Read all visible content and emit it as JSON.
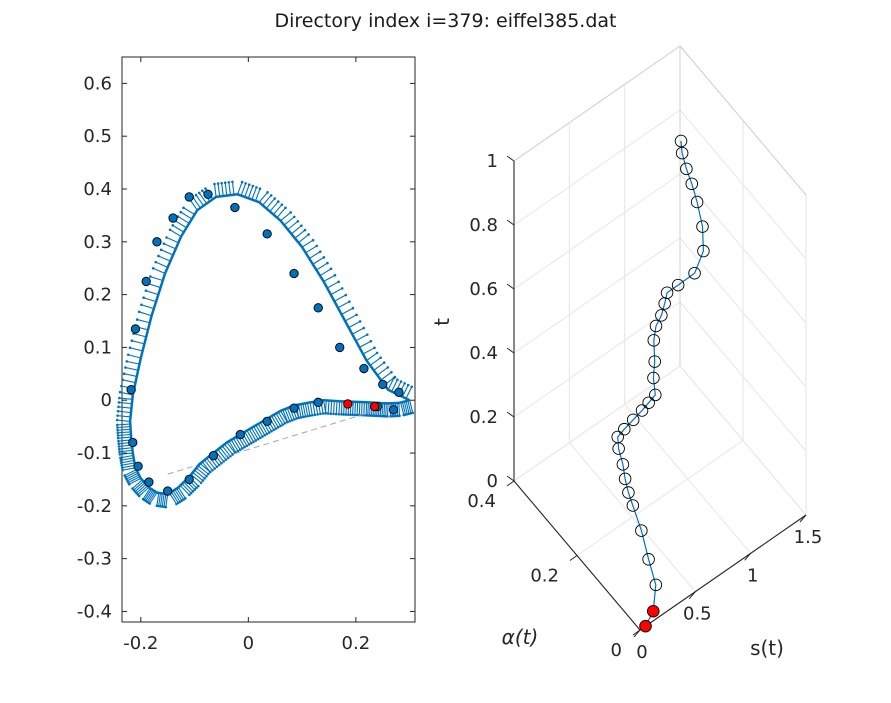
{
  "title": "Directory index i=379: eiffel385.dat",
  "colors": {
    "line": "#0072BD",
    "highlight": "#FF0000",
    "marker_edge": "#000000",
    "grid": "#E6E6E6",
    "axis": "#262626",
    "chord": "#A6A6A6"
  },
  "chart_data": [
    {
      "type": "line",
      "panel": "airfoil-2d",
      "title": "",
      "xlabel": "",
      "ylabel": "",
      "xlim": [
        -0.235,
        0.31
      ],
      "ylim": [
        -0.42,
        0.65
      ],
      "xticks": [
        -0.2,
        0,
        0.2
      ],
      "xtick_labels": [
        "-0.2",
        "0",
        "0.2"
      ],
      "yticks": [
        -0.4,
        -0.3,
        -0.2,
        -0.1,
        0,
        0.1,
        0.2,
        0.3,
        0.4,
        0.5,
        0.6
      ],
      "ytick_labels": [
        "-0.4",
        "-0.3",
        "-0.2",
        "-0.1",
        "0",
        "0.1",
        "0.2",
        "0.3",
        "0.4",
        "0.5",
        "0.6"
      ],
      "grid": false,
      "series": [
        {
          "role": "contour",
          "x": [
            0.3,
            0.28,
            0.26,
            0.24,
            0.22,
            0.195,
            0.17,
            0.14,
            0.11,
            0.085,
            0.06,
            0.035,
            0.01,
            -0.015,
            -0.04,
            -0.065,
            -0.09,
            -0.11,
            -0.13,
            -0.15,
            -0.17,
            -0.185,
            -0.2,
            -0.21,
            -0.215,
            -0.218,
            -0.22,
            -0.215,
            -0.2,
            -0.18,
            -0.155,
            -0.125,
            -0.095,
            -0.06,
            -0.02,
            0.02,
            0.06,
            0.1,
            0.14,
            0.18,
            0.22,
            0.26,
            0.3
          ],
          "y": [
            0.0,
            -0.005,
            -0.006,
            -0.005,
            -0.004,
            -0.003,
            -0.002,
            0.0,
            -0.005,
            -0.01,
            -0.02,
            -0.035,
            -0.05,
            -0.065,
            -0.08,
            -0.1,
            -0.12,
            -0.145,
            -0.165,
            -0.178,
            -0.175,
            -0.165,
            -0.148,
            -0.128,
            -0.1,
            -0.07,
            -0.04,
            0.01,
            0.08,
            0.16,
            0.24,
            0.31,
            0.36,
            0.385,
            0.39,
            0.375,
            0.34,
            0.29,
            0.225,
            0.15,
            0.075,
            0.02,
            0.0
          ]
        },
        {
          "role": "markers",
          "x": [
            0.27,
            0.24,
            0.13,
            0.085,
            0.035,
            -0.015,
            -0.065,
            -0.11,
            -0.15,
            -0.185,
            -0.205,
            -0.215,
            -0.218,
            -0.21,
            -0.19,
            -0.17,
            -0.14,
            -0.11,
            -0.075,
            -0.025,
            0.035,
            0.085,
            0.13,
            0.17,
            0.215,
            0.25,
            0.28
          ],
          "y": [
            -0.018,
            -0.012,
            -0.004,
            -0.015,
            -0.04,
            -0.065,
            -0.105,
            -0.15,
            -0.172,
            -0.155,
            -0.125,
            -0.08,
            0.02,
            0.135,
            0.225,
            0.3,
            0.345,
            0.385,
            0.39,
            0.365,
            0.315,
            0.24,
            0.175,
            0.1,
            0.06,
            0.03,
            0.015
          ]
        },
        {
          "role": "highlight",
          "x": [
            0.185,
            0.235
          ],
          "y": [
            -0.007,
            -0.012
          ]
        },
        {
          "role": "chord",
          "x": [
            -0.15,
            0.3
          ],
          "y": [
            -0.14,
            0.0
          ]
        }
      ]
    },
    {
      "type": "line",
      "panel": "trajectory-3d",
      "title": "",
      "xlabel": "s(t)",
      "ylabel": "α(t)",
      "zlabel": "t",
      "xlim": [
        0,
        1.5
      ],
      "ylim": [
        0,
        0.4
      ],
      "zlim": [
        0,
        1
      ],
      "xticks": [
        0,
        0.5,
        1,
        1.5
      ],
      "xtick_labels": [
        "0",
        "0.5",
        "1",
        "1.5"
      ],
      "yticks": [
        0,
        0.2,
        0.4
      ],
      "ytick_labels": [
        "0",
        "0.2",
        "0.4"
      ],
      "zticks": [
        0,
        0.2,
        0.4,
        0.6,
        0.8,
        1
      ],
      "ztick_labels": [
        "0",
        "0.2",
        "0.4",
        "0.6",
        "0.8",
        "1"
      ],
      "grid": true,
      "series": [
        {
          "role": "trajectory",
          "s": [
            0.05,
            0.12,
            0.2,
            0.22,
            0.24,
            0.22,
            0.18,
            0.15,
            0.13,
            0.12,
            0.14,
            0.2,
            0.28,
            0.36,
            0.42,
            0.48,
            0.52,
            0.56,
            0.58,
            0.6,
            0.62,
            0.65,
            0.7,
            0.8,
            0.92,
            1.0,
            1.02,
            1.0,
            0.98,
            0.96,
            0.95,
            0.94
          ],
          "alpha": [
            0.0,
            0.0,
            0.02,
            0.05,
            0.08,
            0.1,
            0.1,
            0.1,
            0.1,
            0.11,
            0.12,
            0.12,
            0.12,
            0.12,
            0.12,
            0.12,
            0.14,
            0.15,
            0.16,
            0.16,
            0.15,
            0.15,
            0.16,
            0.16,
            0.15,
            0.15,
            0.16,
            0.17,
            0.18,
            0.19,
            0.2,
            0.2
          ],
          "t": [
            0.0,
            0.03,
            0.07,
            0.11,
            0.16,
            0.22,
            0.27,
            0.32,
            0.37,
            0.41,
            0.43,
            0.44,
            0.45,
            0.46,
            0.47,
            0.48,
            0.5,
            0.53,
            0.58,
            0.62,
            0.66,
            0.69,
            0.7,
            0.7,
            0.72,
            0.77,
            0.83,
            0.9,
            0.95,
            0.99,
            1.03,
            1.07
          ]
        },
        {
          "role": "highlight",
          "s": [
            0.05,
            0.12
          ],
          "alpha": [
            0.0,
            0.0
          ],
          "t": [
            0.0,
            0.03
          ]
        }
      ]
    }
  ]
}
